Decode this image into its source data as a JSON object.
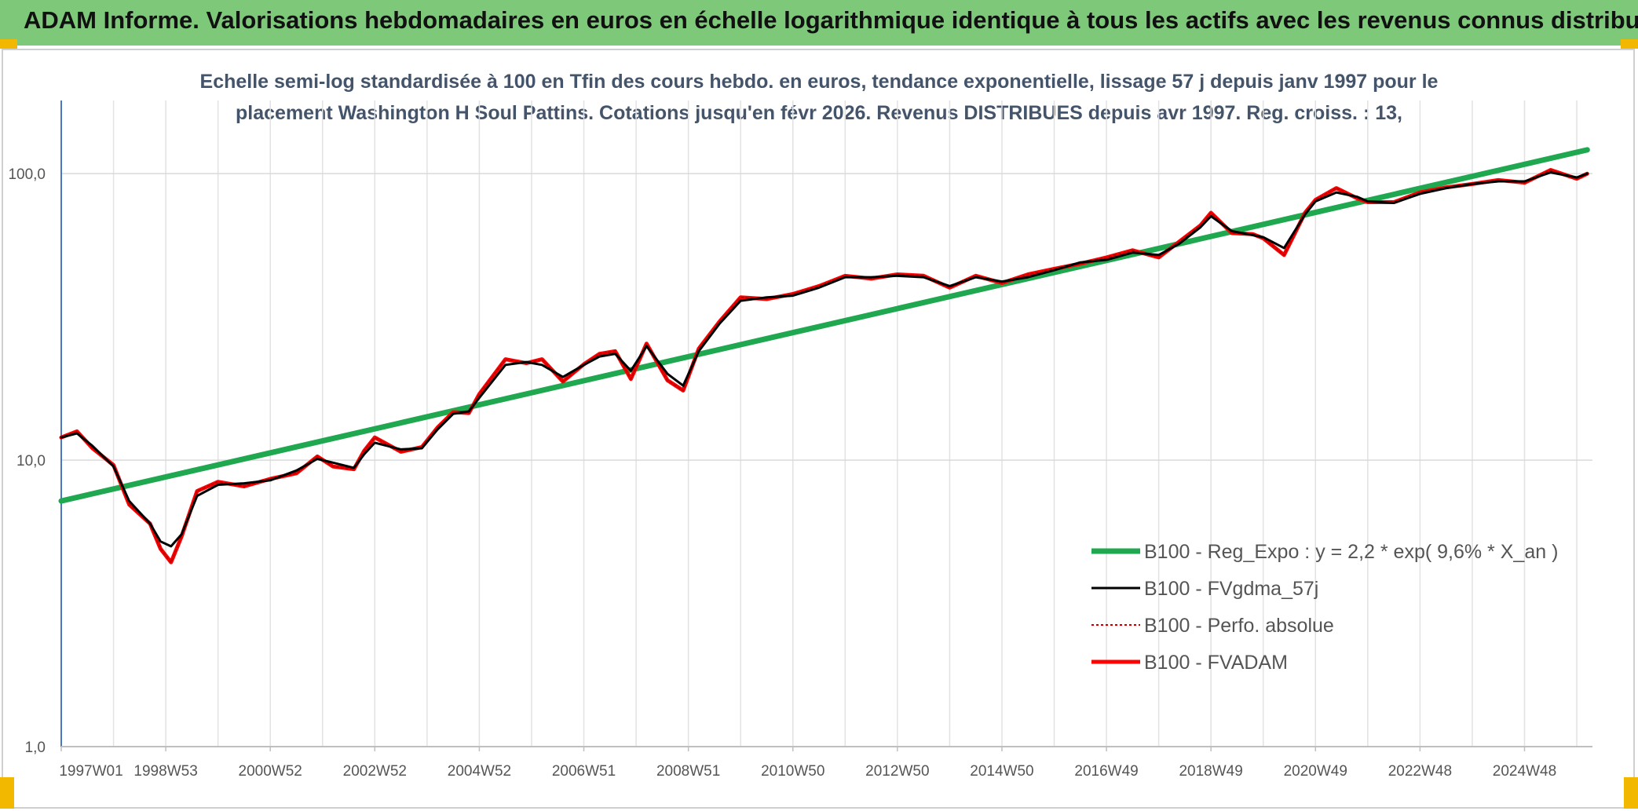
{
  "header": {
    "title": "ADAM Informe. Valorisations hebdomadaires en euros en échelle logarithmique identique à tous les actifs avec les revenus connus distribués"
  },
  "colors": {
    "header_bg": "#7ec87a",
    "accent_corner": "#f2b800",
    "reg_expo": "#1fa84f",
    "fvgdma": "#000000",
    "perfo": "#c00000",
    "fvadam": "#ff0000"
  },
  "chart_data": {
    "type": "line",
    "subtitle_line1": "Echelle semi-log standardisée à 100 en Tfin des cours hebdo. en euros, tendance exponentielle, lissage 57 j depuis janv 1997 pour le",
    "subtitle_line2": "placement Washington H Soul Pattins. Cotations jusqu'en févr 2026. Revenus DISTRIBUES depuis avr 1997. Reg. croiss. : 13,",
    "y_scale": "log",
    "ylim": [
      1,
      180
    ],
    "y_ticks": [
      {
        "value": 1,
        "label": "1,0"
      },
      {
        "value": 10,
        "label": "10,0"
      },
      {
        "value": 100,
        "label": "100,0"
      }
    ],
    "xlim": [
      1997.0,
      2026.3
    ],
    "x_ticks": [
      {
        "x": 1997.0,
        "label": "1997W01"
      },
      {
        "x": 1999.0,
        "label": "1998W53"
      },
      {
        "x": 2001.0,
        "label": "2000W52"
      },
      {
        "x": 2003.0,
        "label": "2002W52"
      },
      {
        "x": 2005.0,
        "label": "2004W52"
      },
      {
        "x": 2007.0,
        "label": "2006W51"
      },
      {
        "x": 2009.0,
        "label": "2008W51"
      },
      {
        "x": 2011.0,
        "label": "2010W50"
      },
      {
        "x": 2013.0,
        "label": "2012W50"
      },
      {
        "x": 2015.0,
        "label": "2014W50"
      },
      {
        "x": 2017.0,
        "label": "2016W49"
      },
      {
        "x": 2019.0,
        "label": "2018W49"
      },
      {
        "x": 2021.0,
        "label": "2020W49"
      },
      {
        "x": 2023.0,
        "label": "2022W48"
      },
      {
        "x": 2025.0,
        "label": "2024W48"
      }
    ],
    "grid": {
      "vertical_every_year": true,
      "horizontal": [
        10,
        100
      ]
    },
    "legend": {
      "placement": "bottom-right"
    },
    "series": [
      {
        "name": "B100 - Reg_Expo : y = 2,2 * exp( 9,6% *  X_an )",
        "style": "thick",
        "x": [
          1997.0,
          2026.2
        ],
        "y": [
          7.2,
          121
        ]
      },
      {
        "name": "B100 - FVgdma_57j",
        "style": "thin",
        "x": [
          1997.0,
          1997.3,
          1997.6,
          1998.0,
          1998.3,
          1998.7,
          1998.9,
          1999.1,
          1999.3,
          1999.6,
          2000.0,
          2000.5,
          2001.0,
          2001.5,
          2001.9,
          2002.2,
          2002.6,
          2002.8,
          2003.0,
          2003.5,
          2003.9,
          2004.2,
          2004.5,
          2004.8,
          2005.0,
          2005.5,
          2005.9,
          2006.2,
          2006.6,
          2007.0,
          2007.3,
          2007.6,
          2007.9,
          2008.2,
          2008.6,
          2008.9,
          2009.2,
          2009.6,
          2010.0,
          2010.5,
          2011.0,
          2011.5,
          2012.0,
          2012.5,
          2013.0,
          2013.5,
          2014.0,
          2014.5,
          2015.0,
          2015.5,
          2016.0,
          2016.5,
          2017.0,
          2017.5,
          2018.0,
          2018.4,
          2018.8,
          2019.0,
          2019.4,
          2019.8,
          2020.0,
          2020.4,
          2020.8,
          2021.0,
          2021.4,
          2021.8,
          2022.0,
          2022.5,
          2023.0,
          2023.5,
          2024.0,
          2024.5,
          2025.0,
          2025.5,
          2026.0,
          2026.2
        ],
        "y": [
          12.0,
          12.4,
          11.2,
          9.5,
          7.2,
          6.0,
          5.2,
          5.0,
          5.5,
          7.5,
          8.2,
          8.3,
          8.5,
          9.2,
          10.1,
          9.8,
          9.4,
          10.5,
          11.5,
          10.9,
          11.0,
          12.8,
          14.5,
          14.8,
          16.5,
          21.5,
          22.0,
          21.5,
          19.5,
          21.5,
          23.0,
          23.5,
          20.5,
          25.0,
          20.0,
          18.2,
          24.0,
          30.0,
          36.0,
          37.0,
          37.5,
          40.0,
          43.5,
          43.5,
          44.0,
          43.5,
          40.5,
          43.5,
          42.0,
          43.5,
          46.0,
          49.0,
          50.0,
          53.0,
          52.0,
          57.0,
          65.0,
          71.0,
          63.0,
          61.0,
          60.0,
          55.0,
          72.0,
          80.0,
          86.0,
          83.0,
          80.0,
          79.0,
          85.0,
          89.0,
          92.0,
          94.0,
          94.0,
          101.0,
          97.0,
          100.0
        ]
      },
      {
        "name": "B100 - Perfo. absolue",
        "style": "dotted",
        "x": [
          1997.0,
          1997.3,
          1997.6,
          1998.0,
          1998.3,
          1998.7,
          1998.9,
          1999.1,
          1999.3,
          1999.6,
          2000.0,
          2000.5,
          2001.0,
          2001.5,
          2001.9,
          2002.2,
          2002.6,
          2002.8,
          2003.0,
          2003.5,
          2003.9,
          2004.2,
          2004.5,
          2004.8,
          2005.0,
          2005.5,
          2005.9,
          2006.2,
          2006.6,
          2007.0,
          2007.3,
          2007.6,
          2007.9,
          2008.2,
          2008.6,
          2008.9,
          2009.2,
          2009.6,
          2010.0,
          2010.5,
          2011.0,
          2011.5,
          2012.0,
          2012.5,
          2013.0,
          2013.5,
          2014.0,
          2014.5,
          2015.0,
          2015.5,
          2016.0,
          2016.5,
          2017.0,
          2017.5,
          2018.0,
          2018.4,
          2018.8,
          2019.0,
          2019.4,
          2019.8,
          2020.0,
          2020.4,
          2020.8,
          2021.0,
          2021.4,
          2021.8,
          2022.0,
          2022.5,
          2023.0,
          2023.5,
          2024.0,
          2024.5,
          2025.0,
          2025.5,
          2026.0,
          2026.2
        ],
        "y": [
          12.0,
          12.6,
          11.0,
          9.6,
          7.0,
          6.0,
          4.9,
          4.4,
          5.4,
          7.8,
          8.4,
          8.1,
          8.6,
          9.0,
          10.3,
          9.5,
          9.3,
          10.8,
          12.0,
          10.7,
          11.1,
          13.0,
          14.7,
          14.6,
          17.0,
          22.5,
          21.8,
          22.5,
          18.8,
          21.6,
          23.5,
          24.0,
          19.2,
          25.5,
          19.0,
          17.5,
          24.5,
          30.5,
          37.0,
          36.5,
          38.0,
          40.5,
          44.0,
          43.0,
          44.5,
          44.0,
          40.0,
          44.0,
          41.5,
          44.5,
          46.5,
          48.5,
          51.0,
          54.0,
          51.0,
          58.0,
          66.0,
          73.0,
          62.0,
          61.5,
          59.5,
          52.0,
          73.0,
          81.0,
          89.0,
          82.0,
          79.5,
          79.5,
          86.0,
          89.5,
          92.0,
          95.0,
          93.0,
          103.0,
          96.0,
          100.0
        ]
      },
      {
        "name": "B100 - FVADAM",
        "style": "thick",
        "x": [
          1997.0,
          1997.3,
          1997.6,
          1998.0,
          1998.3,
          1998.7,
          1998.9,
          1999.1,
          1999.3,
          1999.6,
          2000.0,
          2000.5,
          2001.0,
          2001.5,
          2001.9,
          2002.2,
          2002.6,
          2002.8,
          2003.0,
          2003.5,
          2003.9,
          2004.2,
          2004.5,
          2004.8,
          2005.0,
          2005.5,
          2005.9,
          2006.2,
          2006.6,
          2007.0,
          2007.3,
          2007.6,
          2007.9,
          2008.2,
          2008.6,
          2008.9,
          2009.2,
          2009.6,
          2010.0,
          2010.5,
          2011.0,
          2011.5,
          2012.0,
          2012.5,
          2013.0,
          2013.5,
          2014.0,
          2014.5,
          2015.0,
          2015.5,
          2016.0,
          2016.5,
          2017.0,
          2017.5,
          2018.0,
          2018.4,
          2018.8,
          2019.0,
          2019.4,
          2019.8,
          2020.0,
          2020.4,
          2020.8,
          2021.0,
          2021.4,
          2021.8,
          2022.0,
          2022.5,
          2023.0,
          2023.5,
          2024.0,
          2024.5,
          2025.0,
          2025.5,
          2026.0,
          2026.2
        ],
        "y": [
          12.0,
          12.6,
          11.0,
          9.6,
          7.0,
          6.0,
          4.9,
          4.4,
          5.4,
          7.8,
          8.4,
          8.1,
          8.6,
          9.0,
          10.3,
          9.5,
          9.3,
          10.8,
          12.0,
          10.7,
          11.1,
          13.0,
          14.7,
          14.6,
          17.0,
          22.5,
          21.8,
          22.5,
          18.8,
          21.6,
          23.5,
          24.0,
          19.2,
          25.5,
          19.0,
          17.5,
          24.5,
          30.5,
          37.0,
          36.5,
          38.0,
          40.5,
          44.0,
          43.0,
          44.5,
          44.0,
          40.0,
          44.0,
          41.5,
          44.5,
          46.5,
          48.5,
          51.0,
          54.0,
          51.0,
          58.0,
          66.0,
          73.0,
          62.0,
          61.5,
          59.5,
          52.0,
          73.0,
          81.0,
          89.0,
          82.0,
          79.5,
          79.5,
          86.0,
          89.5,
          92.0,
          95.0,
          93.0,
          103.0,
          96.0,
          100.0
        ]
      }
    ]
  }
}
